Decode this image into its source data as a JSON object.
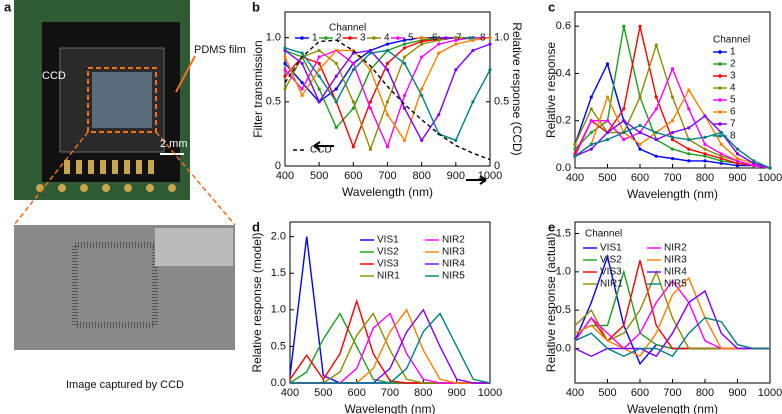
{
  "photo_panel": {
    "panel_label": "a",
    "pdms_label": "PDMS film",
    "ccd_label": "CCD",
    "scale_label": "2 mm",
    "caption": "Image captured by CCD"
  },
  "chart_data": [
    {
      "type": "line",
      "panel_label": "b",
      "xlabel": "Wavelength (nm)",
      "ylabel": "Filter transmission",
      "y2label": "Relative response (CCD)",
      "x": [
        400,
        450,
        500,
        550,
        600,
        650,
        700,
        750,
        800,
        850,
        900,
        950,
        1000
      ],
      "xlim": [
        400,
        1000
      ],
      "xticks": [
        400,
        500,
        600,
        700,
        800,
        900,
        1000
      ],
      "ylim": [
        0,
        1.2
      ],
      "yticks": [
        0,
        0.5,
        {
          "value": 1,
          "label": "1.0"
        }
      ],
      "y2lim": [
        0,
        1.2
      ],
      "y2ticks": [
        0,
        0.5,
        {
          "value": 1,
          "label": "1.0"
        }
      ],
      "markers": true,
      "legend_title": "Channel",
      "series": [
        {
          "name": "1",
          "color": "#0000ff",
          "values": [
            0.8,
            0.65,
            0.5,
            0.6,
            0.8,
            0.9,
            0.95,
            0.98,
            1.0,
            1.0,
            1.0,
            1.0,
            1.0
          ]
        },
        {
          "name": "2",
          "color": "#1f9e1f",
          "values": [
            0.9,
            0.85,
            0.6,
            0.3,
            0.45,
            0.75,
            0.9,
            0.95,
            0.98,
            1.0,
            1.0,
            1.0,
            1.0
          ]
        },
        {
          "name": "3",
          "color": "#ff0000",
          "values": [
            0.7,
            0.85,
            0.8,
            0.5,
            0.15,
            0.5,
            0.8,
            0.92,
            0.97,
            0.99,
            1.0,
            1.0,
            1.0
          ]
        },
        {
          "name": "4",
          "color": "#8c8c00",
          "values": [
            0.6,
            0.85,
            0.9,
            0.8,
            0.5,
            0.13,
            0.5,
            0.85,
            0.95,
            0.98,
            1.0,
            1.0,
            1.0
          ]
        },
        {
          "name": "5",
          "color": "#ff00ff",
          "values": [
            0.75,
            0.6,
            0.85,
            0.9,
            0.8,
            0.45,
            0.15,
            0.55,
            0.85,
            0.95,
            0.98,
            1.0,
            1.0
          ]
        },
        {
          "name": "6",
          "color": "#ff8000",
          "values": [
            0.85,
            0.55,
            0.75,
            0.9,
            0.9,
            0.75,
            0.4,
            0.2,
            0.6,
            0.88,
            0.95,
            0.98,
            1.0
          ]
        },
        {
          "name": "7",
          "color": "#7f00ff",
          "values": [
            0.9,
            0.8,
            0.5,
            0.7,
            0.88,
            0.9,
            0.75,
            0.45,
            0.2,
            0.4,
            0.75,
            0.9,
            0.95
          ]
        },
        {
          "name": "8",
          "color": "#008080",
          "values": [
            0.92,
            0.88,
            0.7,
            0.5,
            0.75,
            0.88,
            0.9,
            0.8,
            0.55,
            0.25,
            0.2,
            0.5,
            0.75
          ]
        },
        {
          "name": "CCD",
          "color": "#000000",
          "linestyle": "dashed",
          "axis": "y2",
          "values": [
            0.65,
            0.85,
            0.97,
            0.98,
            0.9,
            0.78,
            0.62,
            0.48,
            0.36,
            0.25,
            0.16,
            0.1,
            0.05
          ]
        }
      ]
    },
    {
      "type": "line",
      "panel_label": "c",
      "xlabel": "Wavelength (nm)",
      "ylabel": "Relative response",
      "x": [
        400,
        450,
        500,
        550,
        600,
        650,
        700,
        750,
        800,
        850,
        900,
        950,
        1000
      ],
      "xlim": [
        400,
        1000
      ],
      "xticks": [
        400,
        500,
        600,
        700,
        800,
        900,
        1000
      ],
      "ylim": [
        0,
        0.66
      ],
      "yticks": [
        {
          "value": 0,
          "label": "0.0"
        },
        0.2,
        0.4,
        0.6
      ],
      "markers": true,
      "legend_title": "Channel",
      "series": [
        {
          "name": "1",
          "color": "#0000ff",
          "values": [
            0.1,
            0.3,
            0.44,
            0.2,
            0.08,
            0.05,
            0.04,
            0.03,
            0.03,
            0.02,
            0.01,
            0.01,
            0.0
          ]
        },
        {
          "name": "2",
          "color": "#1f9e1f",
          "values": [
            0.08,
            0.15,
            0.2,
            0.6,
            0.3,
            0.12,
            0.08,
            0.06,
            0.05,
            0.03,
            0.02,
            0.01,
            0.0
          ]
        },
        {
          "name": "3",
          "color": "#ff0000",
          "values": [
            0.06,
            0.2,
            0.15,
            0.25,
            0.6,
            0.3,
            0.12,
            0.08,
            0.06,
            0.04,
            0.02,
            0.01,
            0.0
          ]
        },
        {
          "name": "4",
          "color": "#8c8c00",
          "values": [
            0.1,
            0.25,
            0.15,
            0.15,
            0.3,
            0.52,
            0.3,
            0.12,
            0.08,
            0.05,
            0.03,
            0.01,
            0.0
          ]
        },
        {
          "name": "5",
          "color": "#ff00ff",
          "values": [
            0.05,
            0.2,
            0.2,
            0.12,
            0.15,
            0.25,
            0.42,
            0.25,
            0.1,
            0.06,
            0.03,
            0.01,
            0.0
          ]
        },
        {
          "name": "6",
          "color": "#ff8000",
          "values": [
            0.05,
            0.1,
            0.3,
            0.15,
            0.1,
            0.15,
            0.2,
            0.33,
            0.22,
            0.1,
            0.04,
            0.02,
            0.0
          ]
        },
        {
          "name": "7",
          "color": "#7f00ff",
          "values": [
            0.05,
            0.08,
            0.15,
            0.2,
            0.15,
            0.12,
            0.15,
            0.17,
            0.22,
            0.15,
            0.06,
            0.02,
            0.0
          ]
        },
        {
          "name": "8",
          "color": "#008080",
          "values": [
            0.05,
            0.1,
            0.12,
            0.15,
            0.18,
            0.15,
            0.13,
            0.12,
            0.13,
            0.15,
            0.08,
            0.03,
            0.0
          ]
        }
      ]
    },
    {
      "type": "line",
      "panel_label": "d",
      "xlabel": "Wavelength (nm)",
      "ylabel": "Relative response (model)",
      "x": [
        400,
        450,
        500,
        550,
        600,
        650,
        700,
        750,
        800,
        850,
        900,
        950,
        1000
      ],
      "xlim": [
        400,
        1000
      ],
      "xticks": [
        400,
        500,
        600,
        700,
        800,
        900,
        1000
      ],
      "ylim": [
        0,
        2.2
      ],
      "yticks": [
        {
          "value": 0,
          "label": "0.0"
        },
        0.5,
        {
          "value": 1,
          "label": "1.0"
        },
        1.5,
        {
          "value": 2,
          "label": "2.0"
        }
      ],
      "markers": false,
      "series": [
        {
          "name": "VIS1",
          "color": "#0000ff",
          "values": [
            0.1,
            2.0,
            0.1,
            0,
            0,
            0,
            0,
            0,
            0,
            0,
            0,
            0,
            0
          ]
        },
        {
          "name": "VIS2",
          "color": "#1f9e1f",
          "values": [
            0,
            0.15,
            0.6,
            0.95,
            0.5,
            0.05,
            0,
            0,
            0,
            0,
            0,
            0,
            0
          ]
        },
        {
          "name": "VIS3",
          "color": "#ff0000",
          "values": [
            0.05,
            0.38,
            0.05,
            0.4,
            1.12,
            0.4,
            0.03,
            0,
            0,
            0,
            0,
            0,
            0
          ]
        },
        {
          "name": "NIR1",
          "color": "#8c8c00",
          "values": [
            0,
            0,
            0,
            0.15,
            0.65,
            0.95,
            0.45,
            0.05,
            0,
            0,
            0,
            0,
            0
          ]
        },
        {
          "name": "NIR2",
          "color": "#ff00ff",
          "values": [
            0,
            0,
            0,
            0,
            0.2,
            0.75,
            0.95,
            0.4,
            0.05,
            0,
            0,
            0,
            0
          ]
        },
        {
          "name": "NIR3",
          "color": "#ff8000",
          "values": [
            0,
            0,
            0,
            0,
            0,
            0.2,
            0.7,
            1.0,
            0.45,
            0.05,
            0,
            0,
            0
          ]
        },
        {
          "name": "NIR4",
          "color": "#7f00ff",
          "values": [
            0,
            0,
            0,
            0,
            0,
            0,
            0.2,
            0.7,
            1.0,
            0.5,
            0.05,
            0,
            0
          ]
        },
        {
          "name": "NIR5",
          "color": "#008080",
          "values": [
            0,
            0,
            0,
            0,
            0,
            0,
            0,
            0.2,
            0.7,
            0.95,
            0.5,
            0.05,
            0
          ]
        }
      ]
    },
    {
      "type": "line",
      "panel_label": "e",
      "xlabel": "Wavelength (nm)",
      "ylabel": "Relative response (actual)",
      "x": [
        400,
        450,
        500,
        550,
        600,
        650,
        700,
        750,
        800,
        850,
        900,
        950,
        1000
      ],
      "xlim": [
        400,
        1000
      ],
      "xticks": [
        400,
        500,
        600,
        700,
        800,
        900,
        1000
      ],
      "ylim": [
        -0.45,
        1.65
      ],
      "yticks": [
        {
          "value": 0,
          "label": "0.0"
        },
        0.5,
        {
          "value": 1,
          "label": "1.0"
        },
        1.5
      ],
      "markers": false,
      "legend_title": "Channel",
      "series": [
        {
          "name": "VIS1",
          "color": "#0000ff",
          "values": [
            0.1,
            0.6,
            1.2,
            0.3,
            -0.2,
            0.05,
            0,
            0,
            0,
            0,
            0,
            0,
            0
          ]
        },
        {
          "name": "VIS2",
          "color": "#1f9e1f",
          "values": [
            0.2,
            0.3,
            0.3,
            1.0,
            0.2,
            0.05,
            0,
            0,
            0,
            0,
            0,
            0,
            0
          ]
        },
        {
          "name": "VIS3",
          "color": "#ff0000",
          "values": [
            0.1,
            0.4,
            0.1,
            0.3,
            1.15,
            0.3,
            0,
            0,
            0,
            0,
            0,
            0,
            0
          ]
        },
        {
          "name": "NIR1",
          "color": "#8c8c00",
          "values": [
            0.3,
            0.5,
            0.1,
            0.2,
            0.5,
            1.0,
            0.4,
            0,
            0,
            0,
            0,
            0,
            0
          ]
        },
        {
          "name": "NIR2",
          "color": "#ff00ff",
          "values": [
            0.1,
            0.4,
            0.2,
            0,
            0.2,
            0.6,
            0.88,
            0.6,
            0.1,
            0,
            0,
            0,
            0
          ]
        },
        {
          "name": "NIR3",
          "color": "#ff8000",
          "values": [
            0.2,
            0.3,
            0.1,
            0,
            -0.1,
            0.2,
            0.7,
            0.92,
            0.4,
            0,
            0,
            0,
            0
          ]
        },
        {
          "name": "NIR4",
          "color": "#7f00ff",
          "values": [
            0,
            -0.1,
            0,
            0,
            0,
            -0.1,
            0.2,
            0.6,
            0.75,
            0.2,
            0,
            0,
            0
          ]
        },
        {
          "name": "NIR5",
          "color": "#008080",
          "values": [
            0.1,
            0.2,
            0,
            -0.1,
            0,
            0,
            -0.1,
            0.2,
            0.4,
            0.35,
            0.05,
            0,
            0
          ]
        }
      ]
    }
  ]
}
